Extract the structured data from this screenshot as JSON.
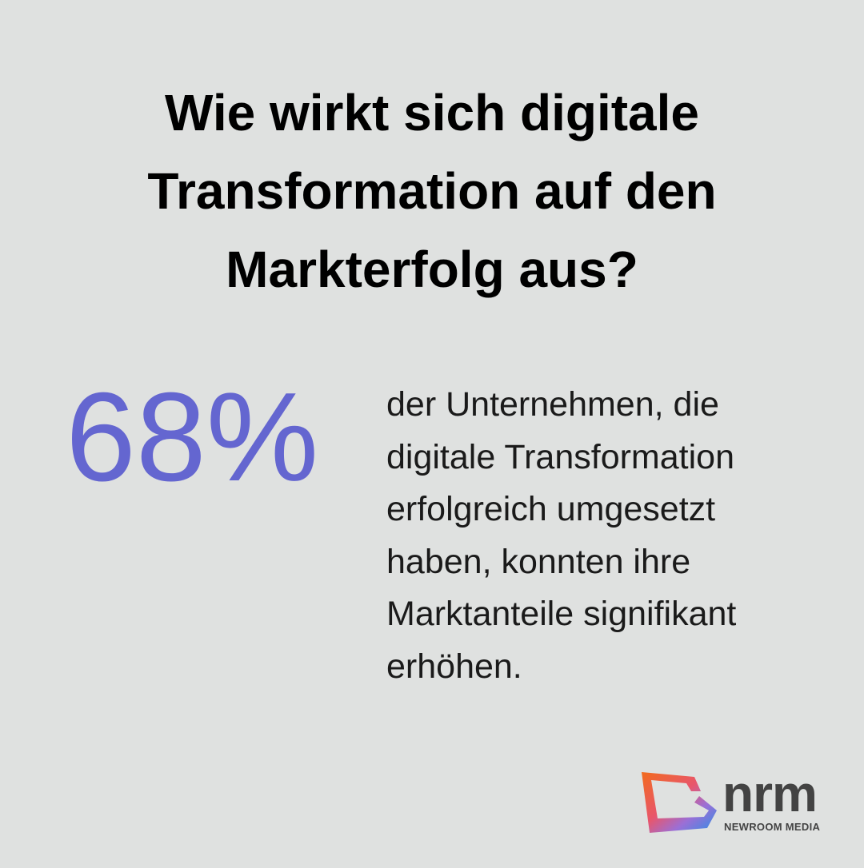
{
  "title": {
    "lines": [
      "Wie wirkt sich digitale",
      "Transformation auf den",
      "Markterfolg aus?"
    ]
  },
  "stat": {
    "value": "68%",
    "description_lines": [
      "der Unternehmen, die",
      "digitale Transformation",
      "erfolgreich umgesetzt",
      "haben, konnten ihre",
      "Marktanteile signifikant",
      "erhöhen."
    ]
  },
  "logo": {
    "name": "nrm",
    "tagline": "NEWROOM MEDIA"
  }
}
